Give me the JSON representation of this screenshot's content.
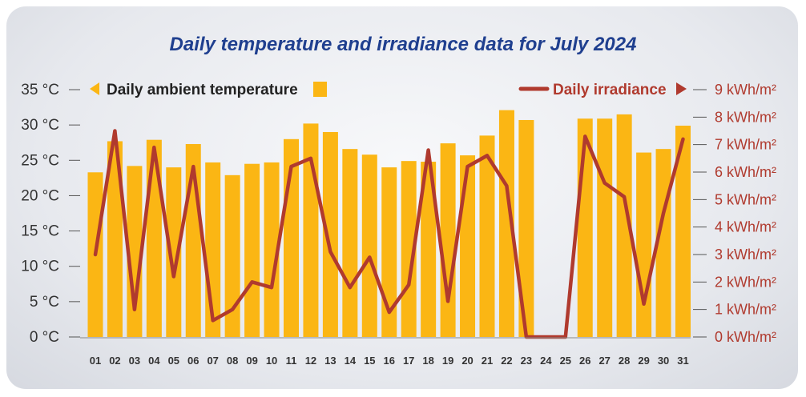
{
  "chart_data": {
    "type": "bar+line",
    "title": "Daily temperature and irradiance data for July 2024",
    "categories": [
      "01",
      "02",
      "03",
      "04",
      "05",
      "06",
      "07",
      "08",
      "09",
      "10",
      "11",
      "12",
      "13",
      "14",
      "15",
      "16",
      "17",
      "18",
      "19",
      "20",
      "21",
      "22",
      "23",
      "24",
      "25",
      "26",
      "27",
      "28",
      "29",
      "30",
      "31"
    ],
    "series": [
      {
        "name": "Daily ambient temperature",
        "type": "bar",
        "axis": "left",
        "color": "#fbb614",
        "values": [
          23.3,
          27.7,
          24.2,
          27.9,
          24.0,
          27.3,
          24.7,
          22.9,
          24.5,
          24.7,
          28.0,
          30.2,
          29.0,
          26.6,
          25.8,
          24.0,
          24.9,
          24.8,
          27.4,
          25.7,
          28.5,
          32.1,
          30.7,
          null,
          null,
          30.9,
          30.9,
          31.5,
          26.1,
          26.6,
          29.9
        ]
      },
      {
        "name": "Daily irradiance",
        "type": "line",
        "axis": "right",
        "color": "#b03a2e",
        "values": [
          3.0,
          7.5,
          1.0,
          6.9,
          2.2,
          6.2,
          0.6,
          1.0,
          2.0,
          1.8,
          6.2,
          6.5,
          3.1,
          1.8,
          2.9,
          0.9,
          1.9,
          6.8,
          1.3,
          6.2,
          6.6,
          5.5,
          0.0,
          0.0,
          0.0,
          7.3,
          5.6,
          5.1,
          1.2,
          4.5,
          7.2
        ]
      }
    ],
    "y_left": {
      "unit": "°C",
      "ylim": [
        0,
        35
      ],
      "ticks": [
        0,
        5,
        10,
        15,
        20,
        25,
        30,
        35
      ],
      "tick_labels": [
        "0 °C",
        "5 °C",
        "10 °C",
        "15 °C",
        "20 °C",
        "25 °C",
        "30 °C",
        "35 °C"
      ]
    },
    "y_right": {
      "unit": "kWh/m²",
      "ylim": [
        0,
        9
      ],
      "ticks": [
        0,
        1,
        2,
        3,
        4,
        5,
        6,
        7,
        8,
        9
      ],
      "tick_labels": [
        "0 kWh/m²",
        "1 kWh/m²",
        "2 kWh/m²",
        "3 kWh/m²",
        "4 kWh/m²",
        "5 kWh/m²",
        "6 kWh/m²",
        "7 kWh/m²",
        "8 kWh/m²",
        "9 kWh/m²"
      ]
    },
    "legend": {
      "temperature": "Daily ambient temperature",
      "irradiance": "Daily irradiance",
      "placement": "top"
    },
    "colors": {
      "title": "#1f3f8f",
      "bar": "#fbb614",
      "line": "#b03a2e",
      "grid": "#555555"
    }
  }
}
